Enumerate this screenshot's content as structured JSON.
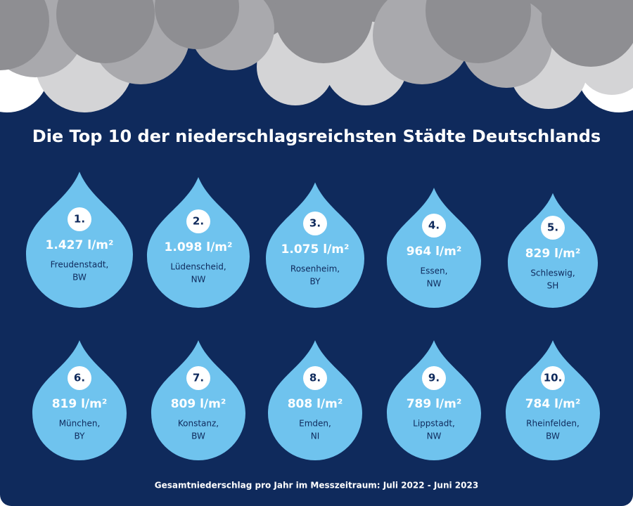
{
  "title": "Die Top 10 der niederschlagsreichsten Städte Deutschlands",
  "footnote": "Gesamtniederschlag pro Jahr im Messzeitraum: Juli 2022 - Juni 2023",
  "items": [
    {
      "rank": "1.",
      "amount": "1.427 l/m²",
      "city": "Freudenstadt,",
      "region": "BW"
    },
    {
      "rank": "2.",
      "amount": "1.098 l/m²",
      "city": "Lüdenscheid,",
      "region": "NW"
    },
    {
      "rank": "3.",
      "amount": "1.075 l/m²",
      "city": "Rosenheim,",
      "region": "BY"
    },
    {
      "rank": "4.",
      "amount": "964 l/m²",
      "city": "Essen,",
      "region": "NW"
    },
    {
      "rank": "5.",
      "amount": "829 l/m²",
      "city": "Schleswig,",
      "region": "SH"
    },
    {
      "rank": "6.",
      "amount": "819 l/m²",
      "city": "München,",
      "region": "BY"
    },
    {
      "rank": "7.",
      "amount": "809 l/m²",
      "city": "Konstanz,",
      "region": "BW"
    },
    {
      "rank": "8.",
      "amount": "808 l/m²",
      "city": "Emden,",
      "region": "NI"
    },
    {
      "rank": "9.",
      "amount": "789 l/m²",
      "city": "Lippstadt,",
      "region": "NW"
    },
    {
      "rank": "10.",
      "amount": "784 l/m²",
      "city": "Rheinfelden,",
      "region": "BW"
    }
  ]
}
